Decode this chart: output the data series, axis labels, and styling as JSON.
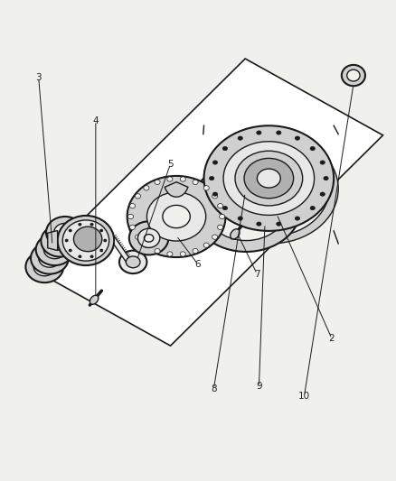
{
  "bg_color": "#f0f0ec",
  "line_color": "#1a1a1a",
  "label_color": "#222222",
  "fill_light": "#e8e8e8",
  "fill_mid": "#d0d0d0",
  "fill_dark": "#b0b0b0",
  "fill_white": "#f8f8f8",
  "table_pts": [
    [
      0.08,
      0.44
    ],
    [
      0.62,
      0.88
    ],
    [
      0.97,
      0.72
    ],
    [
      0.43,
      0.28
    ]
  ],
  "canvas_xlim": [
    0,
    1
  ],
  "canvas_ylim": [
    0,
    1
  ]
}
